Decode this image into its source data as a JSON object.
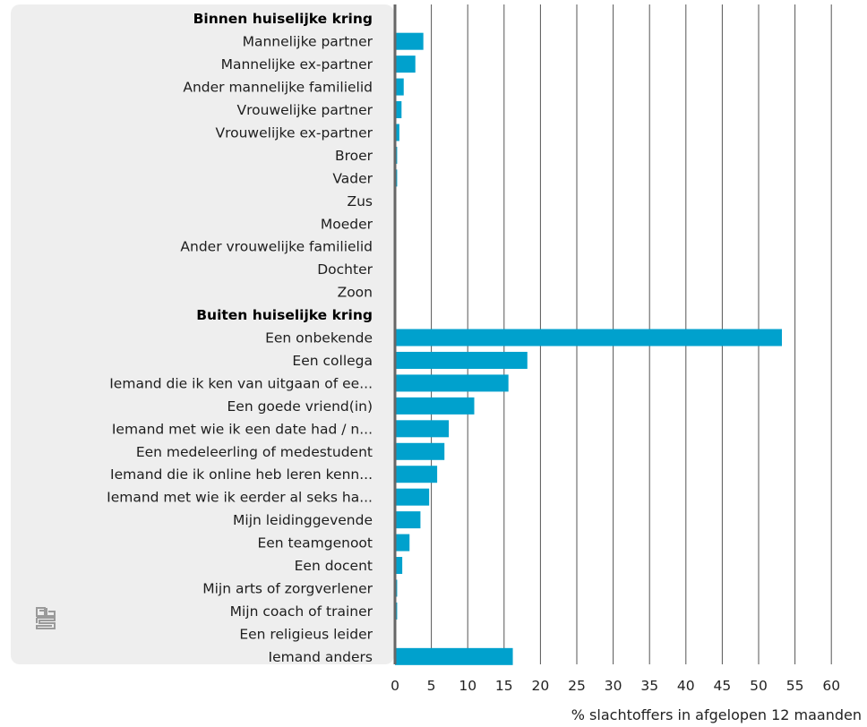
{
  "chart_data": {
    "type": "bar",
    "orientation": "horizontal",
    "xlabel": "% slachtoffers in afgelopen 12 maanden",
    "xlim": [
      0,
      60
    ],
    "xticks": [
      0,
      5,
      10,
      15,
      20,
      25,
      30,
      35,
      40,
      45,
      50,
      55,
      60
    ],
    "grid": true,
    "bar_color": "#00a1cd",
    "label_panel_color": "#eeeeee",
    "categories": [
      {
        "label": "Binnen huiselijke kring",
        "header": true,
        "value": null
      },
      {
        "label": "Mannelijke partner",
        "header": false,
        "value": 3.9
      },
      {
        "label": "Mannelijke ex-partner",
        "header": false,
        "value": 2.8
      },
      {
        "label": "Ander mannelijke familielid",
        "header": false,
        "value": 1.2
      },
      {
        "label": "Vrouwelijke partner",
        "header": false,
        "value": 0.9
      },
      {
        "label": "Vrouwelijke ex-partner",
        "header": false,
        "value": 0.6
      },
      {
        "label": "Broer",
        "header": false,
        "value": 0.3
      },
      {
        "label": "Vader",
        "header": false,
        "value": 0.3
      },
      {
        "label": "Zus",
        "header": false,
        "value": 0.1
      },
      {
        "label": "Moeder",
        "header": false,
        "value": 0.1
      },
      {
        "label": "Ander vrouwelijke familielid",
        "header": false,
        "value": 0.1
      },
      {
        "label": "Dochter",
        "header": false,
        "value": 0.0
      },
      {
        "label": "Zoon",
        "header": false,
        "value": 0.0
      },
      {
        "label": "Buiten huiselijke kring",
        "header": true,
        "value": null
      },
      {
        "label": "Een onbekende",
        "header": false,
        "value": 53.2
      },
      {
        "label": "Een collega",
        "header": false,
        "value": 18.2
      },
      {
        "label": "Iemand die ik ken van uitgaan of ee...",
        "header": false,
        "value": 15.6
      },
      {
        "label": "Een goede vriend(in)",
        "header": false,
        "value": 10.9
      },
      {
        "label": "Iemand met wie ik een date had / n...",
        "header": false,
        "value": 7.4
      },
      {
        "label": "Een medeleerling of medestudent",
        "header": false,
        "value": 6.8
      },
      {
        "label": "Iemand die ik online heb leren kenn...",
        "header": false,
        "value": 5.8
      },
      {
        "label": "Iemand met wie ik eerder al seks ha...",
        "header": false,
        "value": 4.7
      },
      {
        "label": "Mijn leidinggevende",
        "header": false,
        "value": 3.5
      },
      {
        "label": "Een teamgenoot",
        "header": false,
        "value": 2.0
      },
      {
        "label": "Een docent",
        "header": false,
        "value": 1.0
      },
      {
        "label": "Mijn arts of zorgverlener",
        "header": false,
        "value": 0.3
      },
      {
        "label": "Mijn coach of trainer",
        "header": false,
        "value": 0.3
      },
      {
        "label": "Een religieus leider",
        "header": false,
        "value": 0.1
      },
      {
        "label": "Iemand anders",
        "header": false,
        "value": 16.2
      }
    ]
  },
  "logo": {
    "icon": "cbs-logo-icon"
  }
}
